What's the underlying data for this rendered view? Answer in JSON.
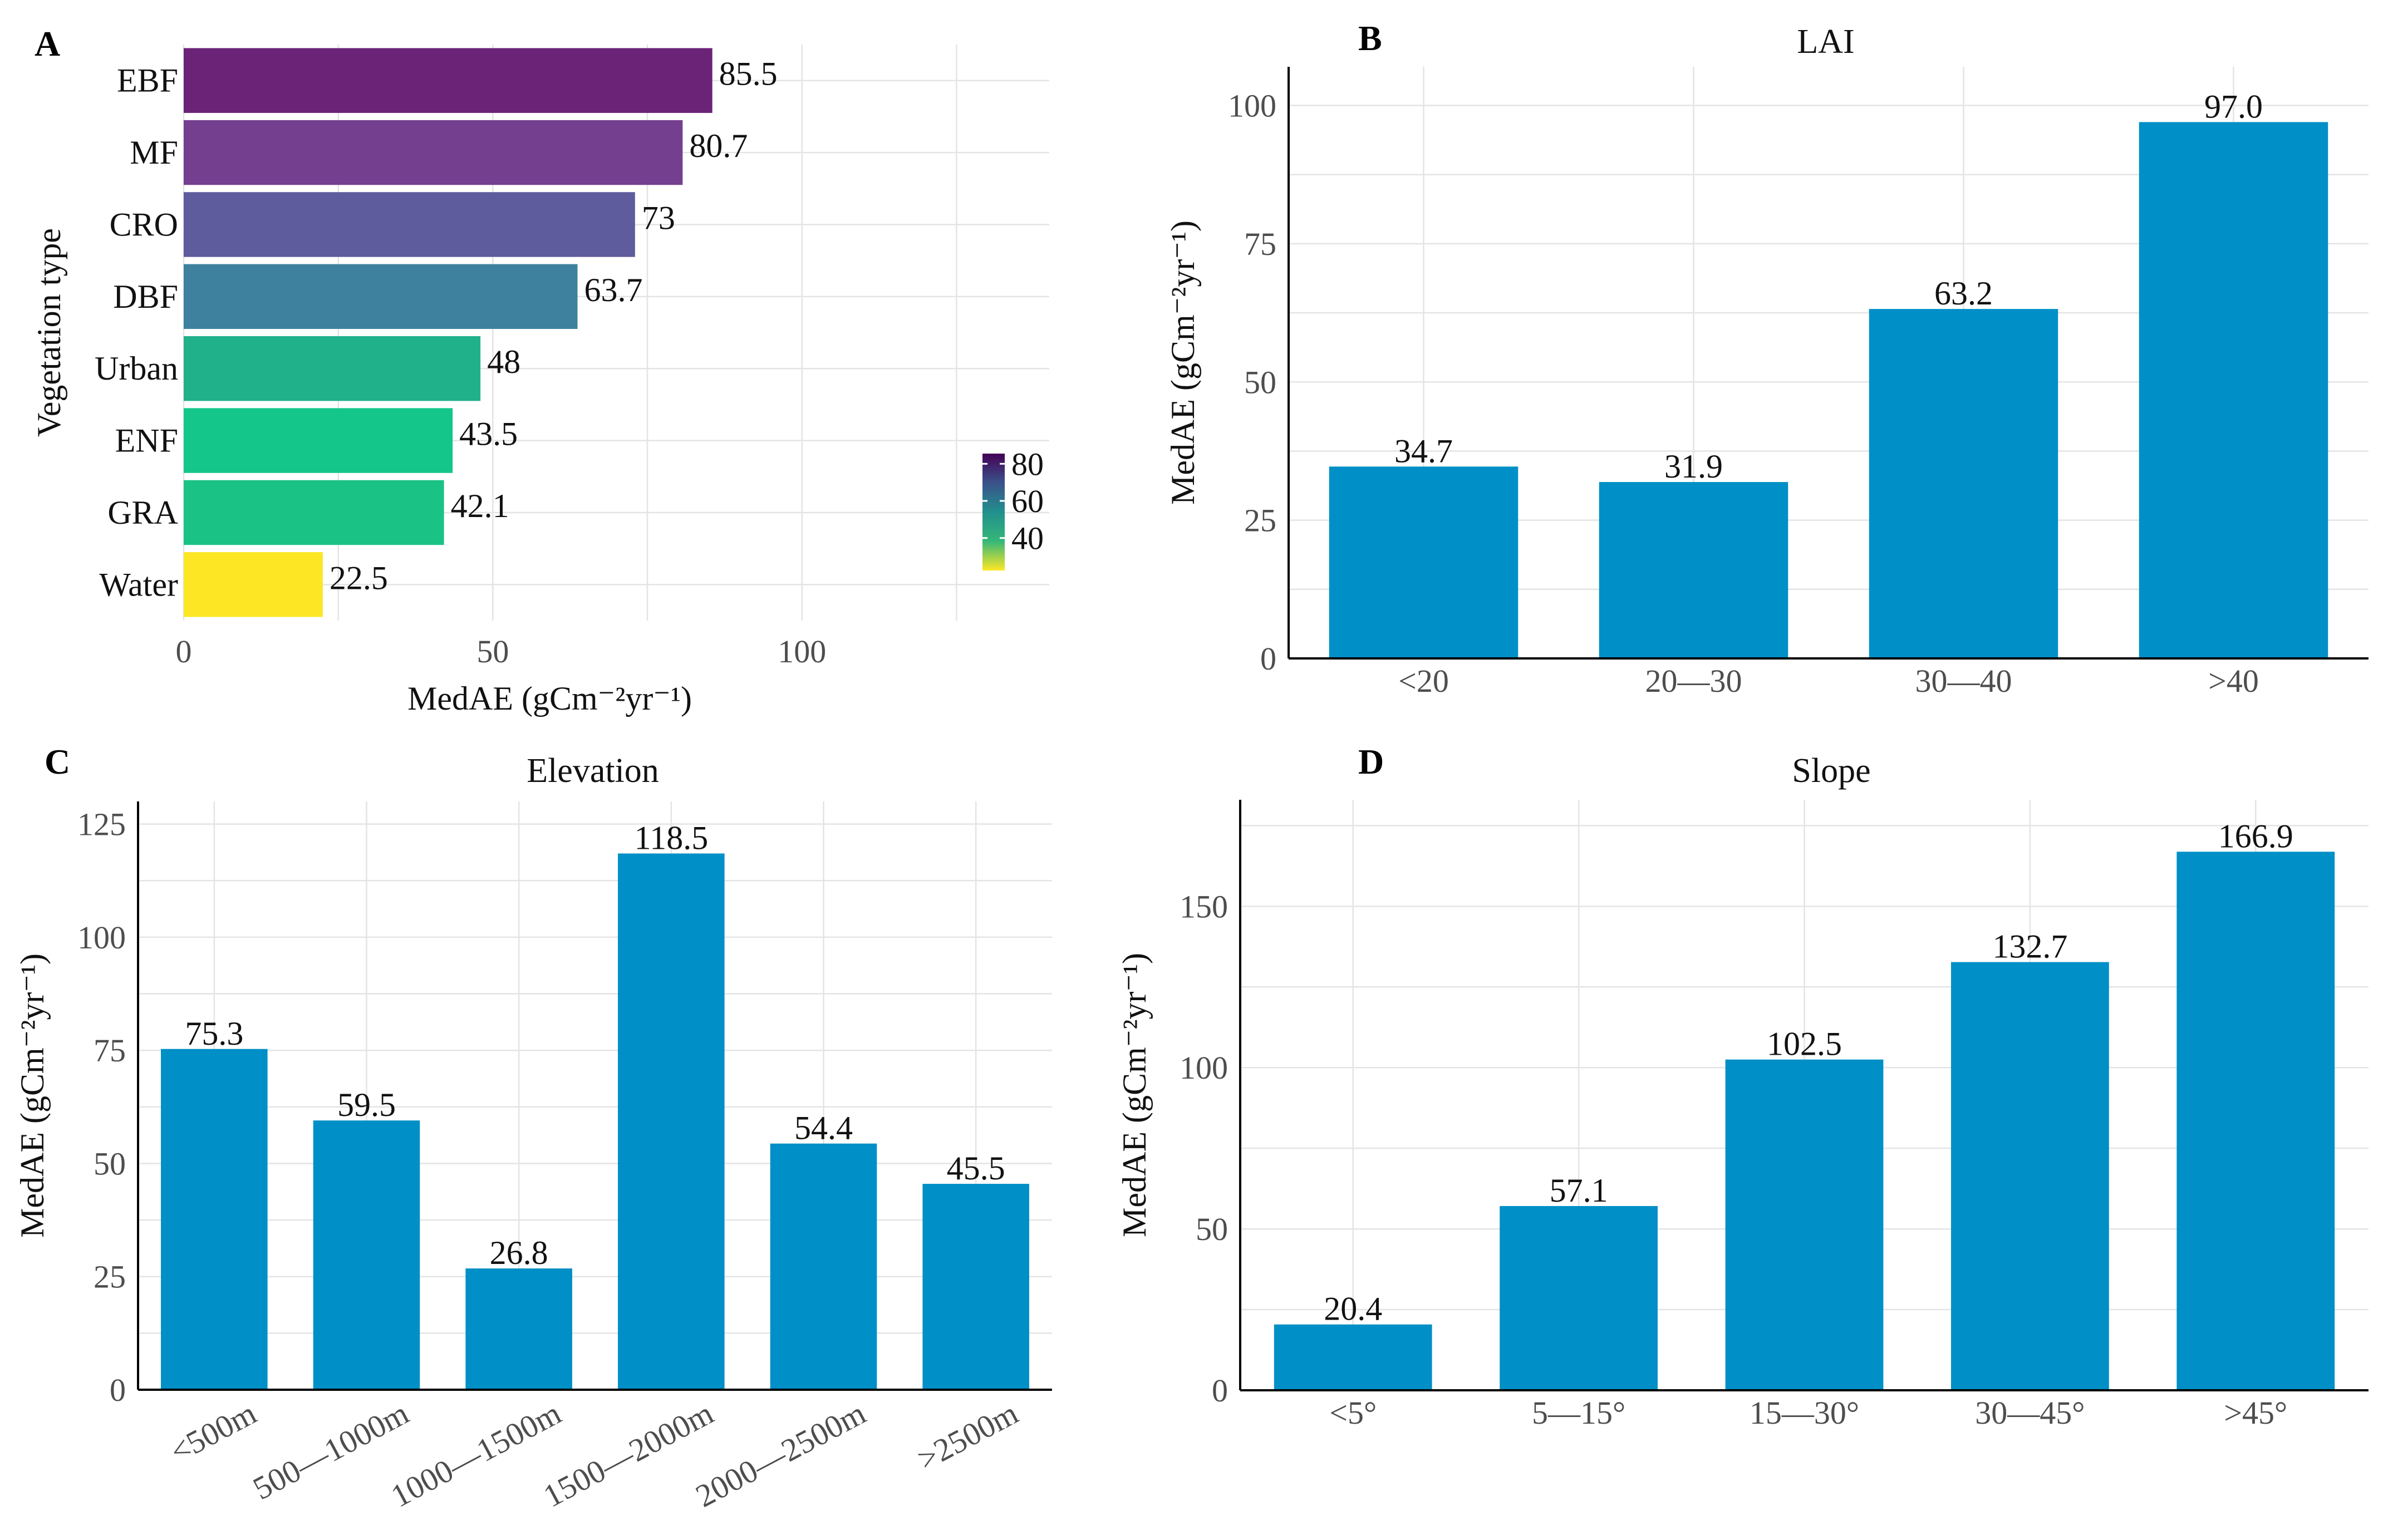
{
  "chart_data": [
    {
      "id": "A",
      "type": "bar",
      "orientation": "horizontal",
      "panel_letter": "A",
      "title": "",
      "categories": [
        "EBF",
        "MF",
        "CRO",
        "DBF",
        "Urban",
        "ENF",
        "GRA",
        "Water"
      ],
      "values": [
        85.5,
        80.7,
        73,
        63.7,
        48,
        43.5,
        42.1,
        22.5
      ],
      "value_labels": [
        "85.5",
        "80.7",
        "73",
        "63.7",
        "48",
        "43.5",
        "42.1",
        "22.5"
      ],
      "colors": [
        "#6a2377",
        "#743f8f",
        "#5e5c9c",
        "#3d819f",
        "#20b18b",
        "#14c68a",
        "#1bc285",
        "#fde725"
      ],
      "xlabel": "MedAE (gCm⁻²yr⁻¹)",
      "ylabel": "Vegetation type",
      "xlim": [
        0,
        140
      ],
      "xticks": [
        0,
        50,
        100
      ],
      "xtick_labels": [
        "0",
        "50",
        "100"
      ],
      "grid": true,
      "legend": {
        "type": "colorbar",
        "placement": "right",
        "ticks": [
          80,
          60,
          40
        ],
        "tick_labels": [
          "80",
          "60",
          "40"
        ],
        "range": [
          22.5,
          85.5
        ],
        "gradient": [
          "#fde725",
          "#35b779",
          "#21908d",
          "#3b528b",
          "#440154"
        ]
      }
    },
    {
      "id": "B",
      "type": "bar",
      "panel_letter": "B",
      "title": "LAI",
      "categories": [
        "<20",
        "20—30",
        "30—40",
        ">40"
      ],
      "values": [
        34.7,
        31.9,
        63.2,
        97.0
      ],
      "value_labels": [
        "34.7",
        "31.9",
        "63.2",
        "97.0"
      ],
      "bar_color": "#008fc6",
      "xlabel": "",
      "ylabel": "MedAE (gCm⁻²yr⁻¹)",
      "ylim": [
        0,
        107
      ],
      "yticks": [
        0,
        25,
        50,
        75,
        100
      ],
      "ytick_labels": [
        "0",
        "25",
        "50",
        "75",
        "100"
      ],
      "grid": true
    },
    {
      "id": "C",
      "type": "bar",
      "panel_letter": "C",
      "title": "Elevation",
      "categories": [
        "<500m",
        "500—1000m",
        "1000—1500m",
        "1500—2000m",
        "2000—2500m",
        ">2500m"
      ],
      "values": [
        75.3,
        59.5,
        26.8,
        118.5,
        54.4,
        45.5
      ],
      "value_labels": [
        "75.3",
        "59.5",
        "26.8",
        "118.5",
        "54.4",
        "45.5"
      ],
      "bar_color": "#008fc6",
      "xlabel": "",
      "ylabel": "MedAE (gCm⁻²yr⁻¹)",
      "ylim": [
        0,
        130
      ],
      "yticks": [
        0,
        25,
        50,
        75,
        100,
        125
      ],
      "ytick_labels": [
        "0",
        "25",
        "50",
        "75",
        "100",
        "125"
      ],
      "grid": true
    },
    {
      "id": "D",
      "type": "bar",
      "panel_letter": "D",
      "title": "Slope",
      "categories": [
        "<5°",
        "5—15°",
        "15—30°",
        "30—45°",
        ">45°"
      ],
      "values": [
        20.4,
        57.1,
        102.5,
        132.7,
        166.9
      ],
      "value_labels": [
        "20.4",
        "57.1",
        "102.5",
        "132.7",
        "166.9"
      ],
      "bar_color": "#008fc6",
      "xlabel": "",
      "ylabel": "MedAE (gCm⁻²yr⁻¹)",
      "ylim": [
        0,
        183
      ],
      "yticks": [
        0,
        50,
        100,
        150
      ],
      "ytick_labels": [
        "0",
        "50",
        "100",
        "150"
      ],
      "grid": true
    }
  ]
}
